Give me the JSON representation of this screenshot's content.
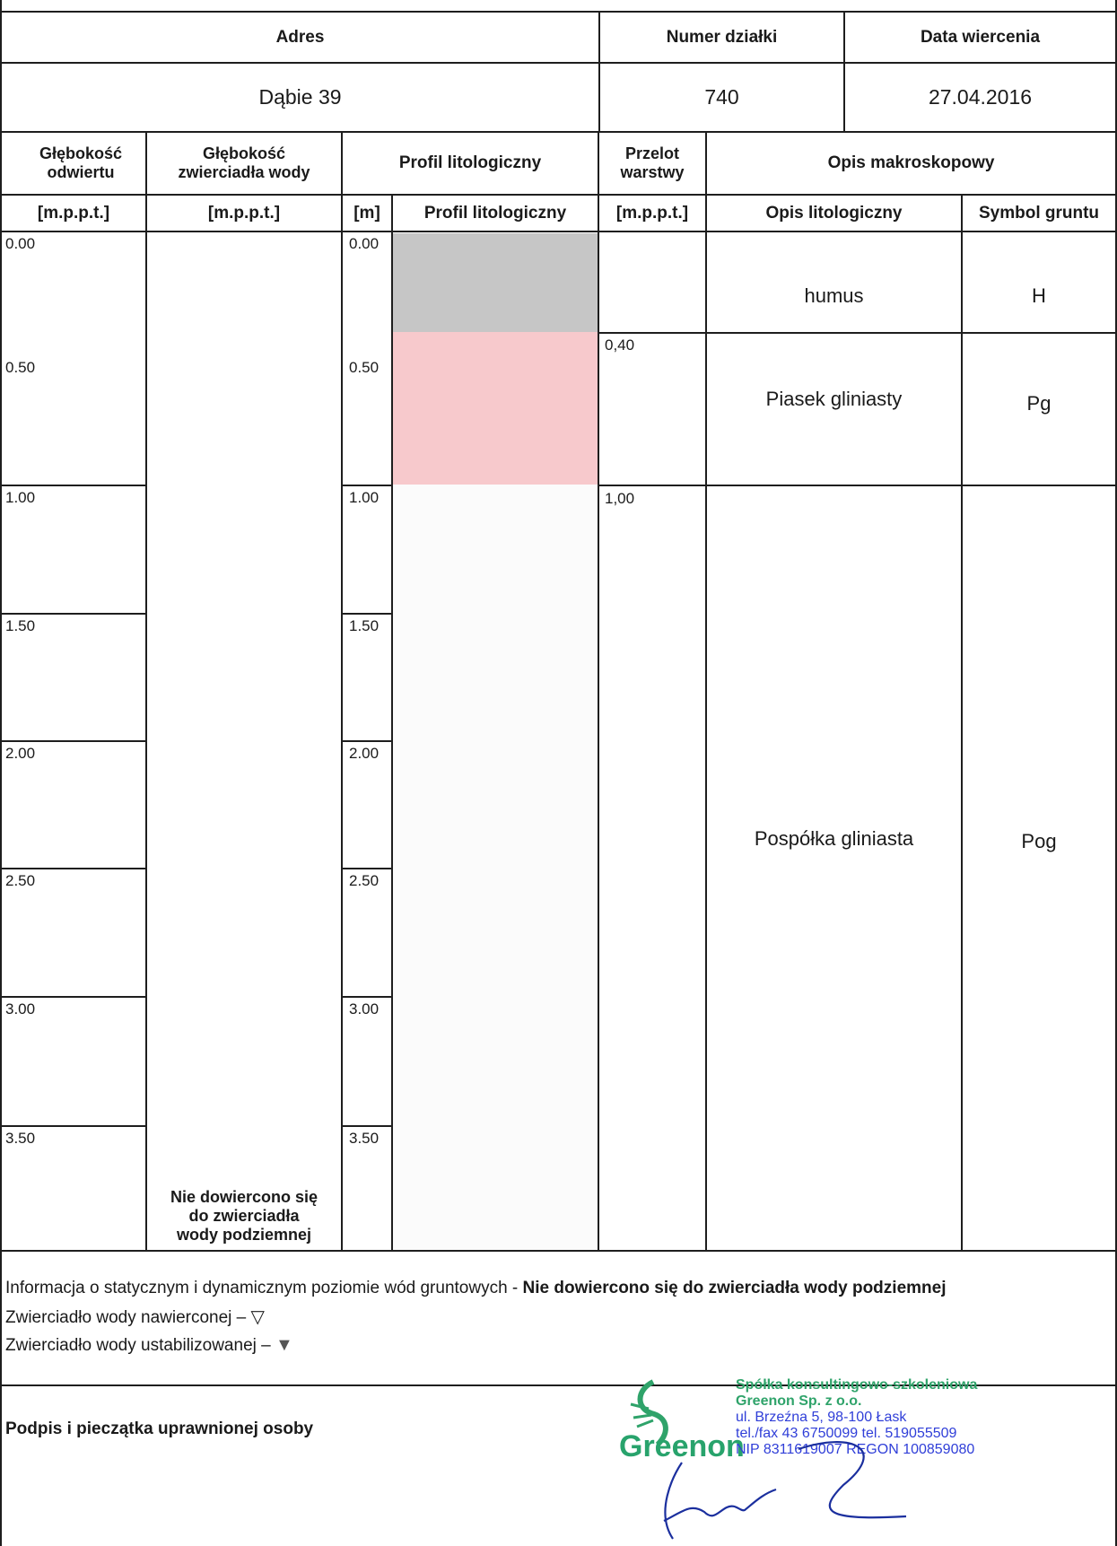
{
  "header": {
    "address_label": "Adres",
    "parcel_label": "Numer działki",
    "date_label": "Data wiercenia",
    "address_value": "Dąbie 39",
    "parcel_value": "740",
    "date_value": "27.04.2016"
  },
  "columns": {
    "depth_label": "Głębokość odwiertu",
    "water_label": "Głębokość zwierciadła wody",
    "profile_label": "Profil litologiczny",
    "layer_top_label": "Przelot warstwy",
    "macro_label": "Opis makroskopowy",
    "depth_unit": "[m.p.p.t.]",
    "water_unit": "[m.p.p.t.]",
    "m_unit": "[m]",
    "profile_sub": "Profil litologiczny",
    "layer_top_unit": "[m.p.p.t.]",
    "litho_desc": "Opis litologiczny",
    "soil_symbol": "Symbol gruntu"
  },
  "depth_ticks": [
    "0.00",
    "0.50",
    "1.00",
    "1.50",
    "2.00",
    "2.50",
    "3.00",
    "3.50"
  ],
  "layers": [
    {
      "top": "",
      "description": "humus",
      "symbol": "H",
      "color": "#c6c6c6"
    },
    {
      "top": "0,40",
      "description": "Piasek gliniasty",
      "symbol": "Pg",
      "color": "#f7c9cc"
    },
    {
      "top": "1,00",
      "description": "Pospółka gliniasta",
      "symbol": "Pog",
      "color": "#fbfbfb"
    }
  ],
  "water_note": "Nie dowiercono się do zwierciadła wody podziemnej",
  "footer": {
    "info_prefix": "Informacja o statycznym i dynamicznym poziomie wód gruntowych  - ",
    "info_bold": "Nie dowiercono się do zwierciadła wody podziemnej",
    "drilled_label": "Zwierciadło wody nawierconej – ",
    "drilled_symbol": "▽",
    "stabilized_label": "Zwierciadło wody ustabilizowanej – ",
    "stabilized_symbol": "▼",
    "signature_label": "Podpis i pieczątka uprawnionej osoby"
  },
  "stamp": {
    "line1": "Spółka konsultingowo-szkoleniowa",
    "line2": "Greenon Sp. z o.o.",
    "line3": "ul. Brzeźna 5, 98-100 Łask",
    "line4": "tel./fax 43 6750099 tel. 519055509",
    "line5": "NIP 8311619007 REGON 100859080",
    "logo": "Greenon"
  }
}
